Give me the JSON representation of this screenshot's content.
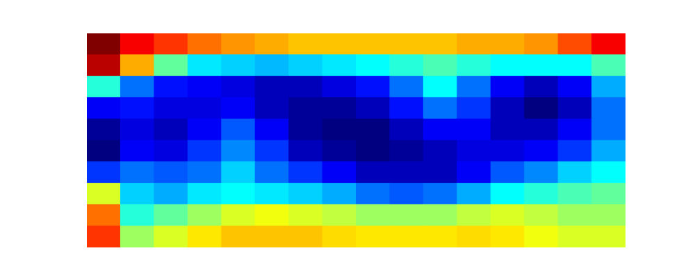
{
  "chart_data": {
    "type": "heatmap",
    "tick_labels": false,
    "cells": [
      [
        0.95,
        0.85,
        0.8,
        0.75,
        0.72,
        0.7,
        0.68,
        0.68,
        0.68,
        0.68,
        0.68,
        0.7,
        0.7,
        0.72,
        0.78,
        0.85
      ],
      [
        0.9,
        0.7,
        0.5,
        0.4,
        0.38,
        0.36,
        0.38,
        0.4,
        0.42,
        0.45,
        0.48,
        0.45,
        0.42,
        0.42,
        0.42,
        0.48
      ],
      [
        0.45,
        0.3,
        0.22,
        0.2,
        0.18,
        0.15,
        0.15,
        0.18,
        0.22,
        0.3,
        0.42,
        0.3,
        0.2,
        0.15,
        0.2,
        0.35
      ],
      [
        0.2,
        0.22,
        0.18,
        0.18,
        0.2,
        0.15,
        0.12,
        0.12,
        0.15,
        0.22,
        0.3,
        0.25,
        0.15,
        0.1,
        0.15,
        0.3
      ],
      [
        0.12,
        0.18,
        0.15,
        0.2,
        0.28,
        0.2,
        0.12,
        0.1,
        0.1,
        0.15,
        0.2,
        0.2,
        0.15,
        0.15,
        0.2,
        0.3
      ],
      [
        0.1,
        0.2,
        0.18,
        0.25,
        0.32,
        0.25,
        0.15,
        0.12,
        0.1,
        0.12,
        0.15,
        0.18,
        0.18,
        0.2,
        0.25,
        0.35
      ],
      [
        0.25,
        0.3,
        0.28,
        0.3,
        0.38,
        0.3,
        0.25,
        0.2,
        0.15,
        0.15,
        0.15,
        0.2,
        0.28,
        0.32,
        0.38,
        0.42
      ],
      [
        0.6,
        0.38,
        0.35,
        0.4,
        0.42,
        0.4,
        0.38,
        0.35,
        0.3,
        0.28,
        0.3,
        0.35,
        0.42,
        0.45,
        0.48,
        0.5
      ],
      [
        0.75,
        0.45,
        0.5,
        0.55,
        0.6,
        0.62,
        0.6,
        0.58,
        0.55,
        0.55,
        0.55,
        0.58,
        0.6,
        0.58,
        0.55,
        0.55
      ],
      [
        0.8,
        0.55,
        0.6,
        0.65,
        0.68,
        0.68,
        0.68,
        0.66,
        0.65,
        0.65,
        0.65,
        0.66,
        0.65,
        0.62,
        0.6,
        0.6
      ]
    ]
  }
}
